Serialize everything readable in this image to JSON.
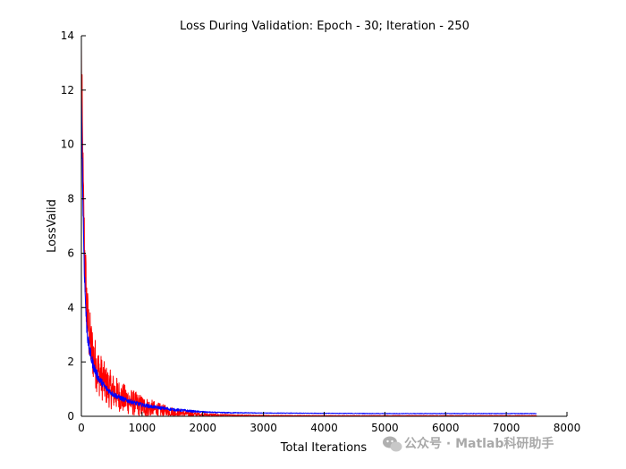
{
  "chart_data": {
    "type": "line",
    "title": "Loss During Validation: Epoch - 30; Iteration - 250",
    "xlabel": "Total Iterations",
    "ylabel": "LossValid",
    "xlim": [
      0,
      8000
    ],
    "ylim": [
      0,
      14
    ],
    "xticks": [
      "0",
      "1000",
      "2000",
      "3000",
      "4000",
      "5000",
      "6000",
      "7000",
      "8000"
    ],
    "yticks": [
      "0",
      "2",
      "4",
      "6",
      "8",
      "10",
      "12",
      "14"
    ],
    "grid": false,
    "legend": "none",
    "series": [
      {
        "color": "#ff0000",
        "x": [
          0,
          20,
          40,
          60,
          80,
          100,
          130,
          160,
          200,
          250,
          300,
          350,
          400,
          500,
          600,
          700,
          800,
          900,
          1000,
          1100,
          1200,
          1300,
          1400,
          1500,
          1600,
          1700,
          1800,
          2000,
          2200,
          2500,
          3000,
          4000,
          5000,
          6000,
          7000,
          7500
        ],
        "y": [
          13.2,
          9.5,
          7.0,
          5.6,
          4.5,
          3.6,
          3.0,
          2.6,
          2.2,
          1.8,
          1.55,
          1.35,
          1.15,
          0.95,
          0.8,
          0.65,
          0.55,
          0.45,
          0.38,
          0.32,
          0.26,
          0.22,
          0.18,
          0.15,
          0.12,
          0.1,
          0.08,
          0.06,
          0.05,
          0.04,
          0.03,
          0.02,
          0.02,
          0.02,
          0.02,
          0.02
        ],
        "noise": [
          1.6,
          1.6,
          1.5,
          1.4,
          1.3,
          1.2,
          1.1,
          1.0,
          0.95,
          0.9,
          0.85,
          0.8,
          0.75,
          0.7,
          0.6,
          0.55,
          0.5,
          0.45,
          0.4,
          0.35,
          0.3,
          0.25,
          0.22,
          0.2,
          0.15,
          0.12,
          0.1,
          0.06,
          0.04,
          0.02,
          0.01,
          0.01,
          0.01,
          0.01,
          0.01,
          0.01
        ]
      },
      {
        "color": "#0000ff",
        "x": [
          0,
          20,
          40,
          60,
          80,
          100,
          130,
          160,
          200,
          250,
          300,
          350,
          400,
          500,
          600,
          700,
          800,
          900,
          1000,
          1100,
          1200,
          1300,
          1400,
          1500,
          1600,
          1700,
          1800,
          2000,
          2200,
          2500,
          3000,
          4000,
          5000,
          6000,
          7000,
          7500
        ],
        "y": [
          12.0,
          8.6,
          6.2,
          4.6,
          3.6,
          3.0,
          2.5,
          2.15,
          1.85,
          1.55,
          1.35,
          1.2,
          1.05,
          0.85,
          0.72,
          0.62,
          0.55,
          0.48,
          0.42,
          0.38,
          0.34,
          0.31,
          0.28,
          0.25,
          0.23,
          0.21,
          0.19,
          0.16,
          0.14,
          0.13,
          0.12,
          0.11,
          0.1,
          0.1,
          0.1,
          0.1
        ],
        "noise": [
          0.5,
          0.5,
          0.45,
          0.4,
          0.35,
          0.3,
          0.25,
          0.22,
          0.2,
          0.18,
          0.16,
          0.14,
          0.12,
          0.11,
          0.1,
          0.09,
          0.08,
          0.08,
          0.07,
          0.07,
          0.06,
          0.06,
          0.06,
          0.05,
          0.05,
          0.05,
          0.04,
          0.03,
          0.02,
          0.02,
          0.01,
          0.01,
          0.01,
          0.01,
          0.01,
          0.01
        ]
      }
    ]
  },
  "watermark": {
    "text": "公众号 · Matlab科研助手"
  }
}
